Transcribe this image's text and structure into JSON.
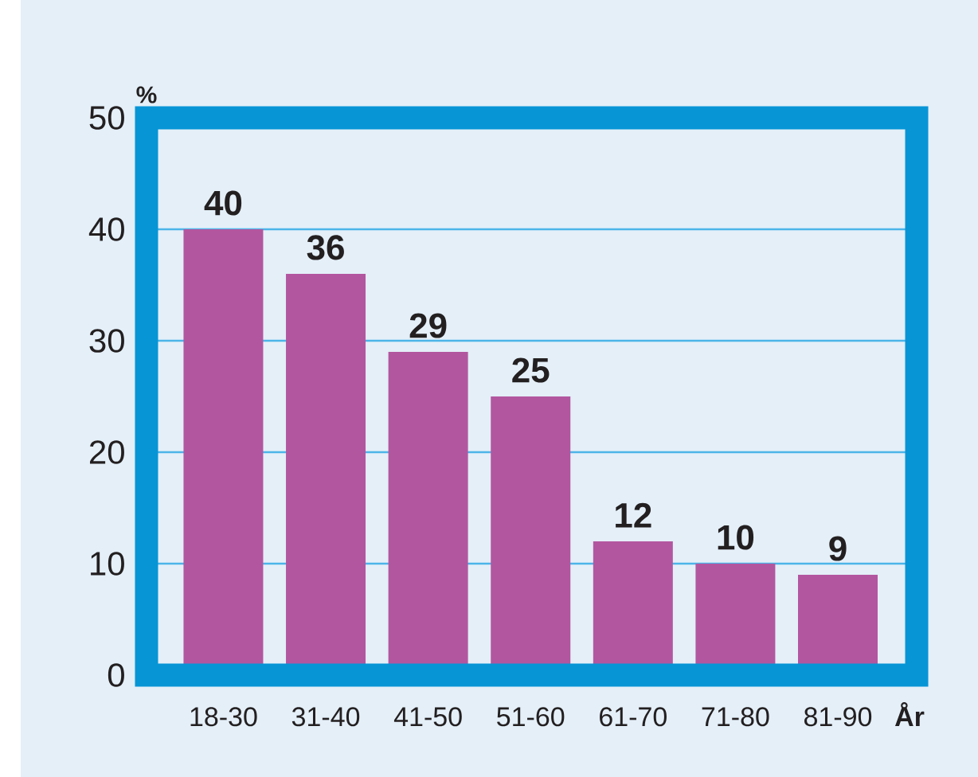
{
  "chart_data": {
    "type": "bar",
    "categories": [
      "18-30",
      "31-40",
      "41-50",
      "51-60",
      "61-70",
      "71-80",
      "81-90"
    ],
    "values": [
      40,
      36,
      29,
      25,
      12,
      10,
      9
    ],
    "color": "#b356a0",
    "ylim": [
      0,
      50
    ],
    "yticks": [
      0,
      10,
      20,
      30,
      40,
      50
    ],
    "ylabel": "%",
    "xlabel": "År",
    "grid": "y",
    "data_labels": true
  }
}
